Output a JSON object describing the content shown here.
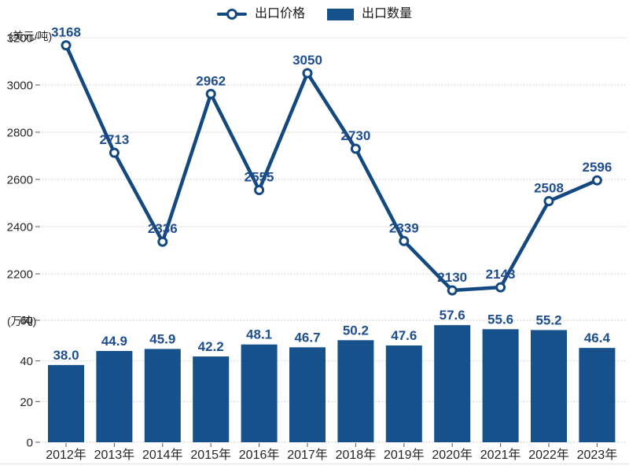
{
  "legend": {
    "price_label": "出口价格",
    "quantity_label": "出口数量"
  },
  "axes": {
    "price_unit": "(美元/吨)",
    "quantity_unit": "(万吨)"
  },
  "colors": {
    "line": "#14497f",
    "bar": "#17518c",
    "value_label": "#1f4e8e",
    "grid": "#d6d6d6",
    "tick_mark": "#555555",
    "tick_text": "#262626",
    "marker_fill": "#ffffff",
    "bottom_border": "#e8e8e8"
  },
  "chart_data": [
    {
      "type": "line",
      "name": "出口价格",
      "unit": "美元/吨",
      "categories": [
        "2012年",
        "2013年",
        "2014年",
        "2015年",
        "2016年",
        "2017年",
        "2018年",
        "2019年",
        "2020年",
        "2021年",
        "2022年",
        "2023年"
      ],
      "values": [
        3168,
        2713,
        2336,
        2962,
        2555,
        3050,
        2730,
        2339,
        2130,
        2143,
        2508,
        2596
      ],
      "labels": [
        "3168",
        "2713",
        "2336",
        "2962",
        "2555",
        "3050",
        "2730",
        "2339",
        "2130",
        "2143",
        "2508",
        "2596"
      ],
      "yticks": [
        3200,
        3000,
        2800,
        2600,
        2400,
        2200
      ],
      "ylim": [
        2100,
        3250
      ],
      "grid": true,
      "marker": "open-circle",
      "legend_position": "top-center"
    },
    {
      "type": "bar",
      "name": "出口数量",
      "unit": "万吨",
      "categories": [
        "2012年",
        "2013年",
        "2014年",
        "2015年",
        "2016年",
        "2017年",
        "2018年",
        "2019年",
        "2020年",
        "2021年",
        "2022年",
        "2023年"
      ],
      "values": [
        38.0,
        44.9,
        45.9,
        42.2,
        48.1,
        46.7,
        50.2,
        47.6,
        57.6,
        55.6,
        55.2,
        46.4
      ],
      "labels": [
        "38.0",
        "44.9",
        "45.9",
        "42.2",
        "48.1",
        "46.7",
        "50.2",
        "47.6",
        "57.6",
        "55.6",
        "55.2",
        "46.4"
      ],
      "yticks": [
        60,
        40,
        20,
        0
      ],
      "ylim": [
        0,
        62
      ],
      "grid": true
    }
  ]
}
